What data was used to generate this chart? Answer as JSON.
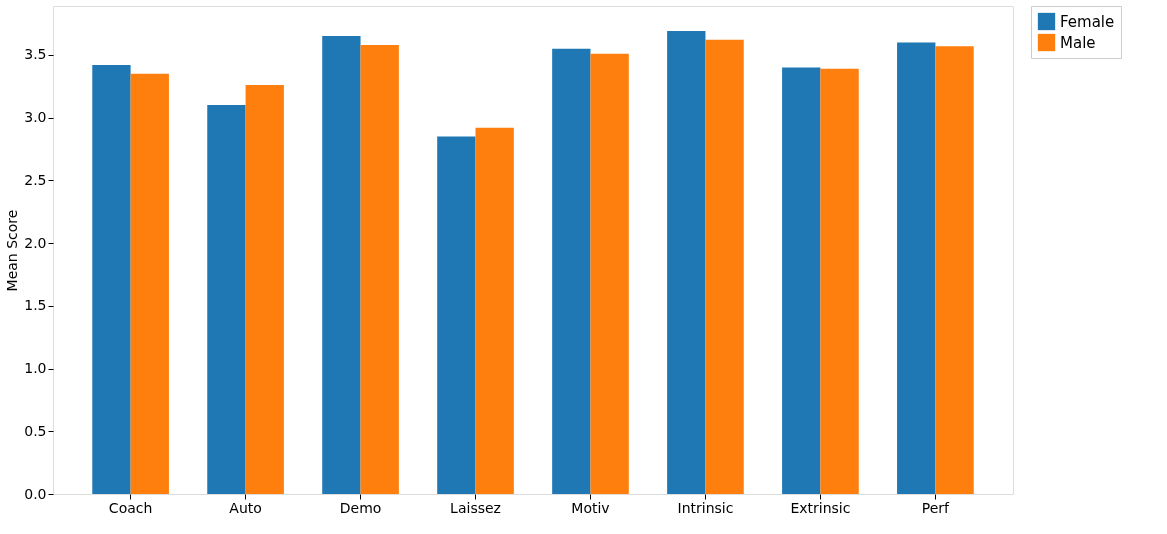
{
  "chart_data": {
    "type": "bar",
    "ylabel": "Mean Score",
    "categories": [
      "Coach",
      "Auto",
      "Demo",
      "Laissez",
      "Motiv",
      "Intrinsic",
      "Extrinsic",
      "Perf"
    ],
    "series": [
      {
        "name": "Female",
        "color": "#1f77b4",
        "values": [
          3.42,
          3.1,
          3.65,
          2.85,
          3.55,
          3.69,
          3.4,
          3.6
        ]
      },
      {
        "name": "Male",
        "color": "#ff7f0e",
        "values": [
          3.35,
          3.26,
          3.58,
          2.92,
          3.51,
          3.62,
          3.39,
          3.57
        ]
      }
    ],
    "ylim": [
      0,
      3.89
    ],
    "yticks": [
      {
        "value": 0,
        "label": "0.0"
      },
      0.5,
      {
        "value": 1,
        "label": "1.0"
      },
      1.5,
      {
        "value": 2,
        "label": "2.0"
      },
      2.5,
      {
        "value": 3,
        "label": "3.0"
      },
      3.5
    ],
    "grid": false,
    "legend": "right"
  }
}
